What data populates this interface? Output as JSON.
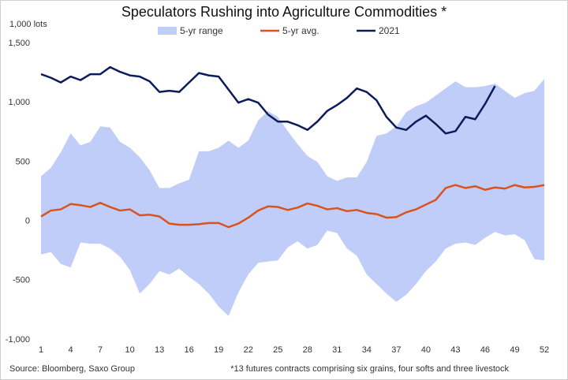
{
  "chart_data": {
    "type": "line",
    "title": "Speculators Rushing into Agriculture Commodities *",
    "y_unit": "1,000 lots",
    "source": "Source: Bloomberg, Saxo Group",
    "note": "*13 futures contracts comprising six grains, four softs and three livestock",
    "x": [
      1,
      2,
      3,
      4,
      5,
      6,
      7,
      8,
      9,
      10,
      11,
      12,
      13,
      14,
      15,
      16,
      17,
      18,
      19,
      20,
      21,
      22,
      23,
      24,
      25,
      26,
      27,
      28,
      29,
      30,
      31,
      32,
      33,
      34,
      35,
      36,
      37,
      38,
      39,
      40,
      41,
      42,
      43,
      44,
      45,
      46,
      47,
      48,
      49,
      50,
      51,
      52
    ],
    "xlim": [
      1,
      52
    ],
    "xticks": [
      1,
      4,
      7,
      10,
      13,
      16,
      19,
      22,
      25,
      28,
      31,
      34,
      37,
      40,
      43,
      46,
      49,
      52
    ],
    "ylim": [
      -1000,
      1500
    ],
    "yticks": [
      {
        "value": -1000,
        "label": "-1,000"
      },
      -500,
      0,
      500,
      {
        "value": 1000,
        "label": "1,000"
      },
      {
        "value": 1500,
        "label": "1,500"
      }
    ],
    "grid": false,
    "legend": "top",
    "range": {
      "name": "5-yr range",
      "color": "#c0cdf9",
      "high": [
        380,
        450,
        580,
        740,
        640,
        670,
        800,
        790,
        670,
        620,
        540,
        430,
        280,
        280,
        320,
        350,
        590,
        590,
        620,
        680,
        620,
        680,
        850,
        930,
        880,
        760,
        650,
        550,
        500,
        380,
        340,
        370,
        370,
        500,
        720,
        740,
        800,
        920,
        970,
        1000,
        1060,
        1120,
        1180,
        1130,
        1130,
        1140,
        1160,
        1100,
        1040,
        1080,
        1100,
        1200
      ],
      "low": [
        -280,
        -260,
        -360,
        -390,
        -180,
        -190,
        -190,
        -230,
        -300,
        -410,
        -610,
        -530,
        -420,
        -450,
        -400,
        -470,
        -530,
        -610,
        -720,
        -800,
        -600,
        -450,
        -350,
        -340,
        -330,
        -220,
        -170,
        -230,
        -200,
        -80,
        -100,
        -230,
        -290,
        -450,
        -530,
        -610,
        -680,
        -620,
        -530,
        -420,
        -340,
        -230,
        -190,
        -180,
        -200,
        -140,
        -90,
        -120,
        -110,
        -160,
        -320,
        -330
      ]
    },
    "series": [
      {
        "name": "5-yr avg.",
        "color": "#d9531e",
        "values": [
          40,
          90,
          100,
          145,
          135,
          120,
          155,
          120,
          90,
          100,
          50,
          55,
          40,
          -20,
          -30,
          -30,
          -25,
          -15,
          -15,
          -50,
          -20,
          30,
          90,
          125,
          120,
          95,
          115,
          150,
          130,
          100,
          110,
          85,
          95,
          70,
          60,
          30,
          35,
          75,
          100,
          140,
          180,
          280,
          305,
          280,
          295,
          265,
          285,
          275,
          305,
          285,
          290,
          305
        ]
      },
      {
        "name": "2021",
        "color": "#0c1c5a",
        "values": [
          1240,
          1210,
          1170,
          1220,
          1190,
          1240,
          1240,
          1300,
          1260,
          1230,
          1220,
          1180,
          1090,
          1100,
          1090,
          1170,
          1250,
          1230,
          1220,
          1110,
          1000,
          1030,
          1000,
          900,
          840,
          840,
          810,
          770,
          840,
          930,
          980,
          1040,
          1120,
          1090,
          1020,
          880,
          790,
          770,
          840,
          890,
          820,
          740,
          760,
          880,
          860,
          990,
          1140,
          null,
          null,
          null,
          null,
          null
        ]
      }
    ]
  }
}
